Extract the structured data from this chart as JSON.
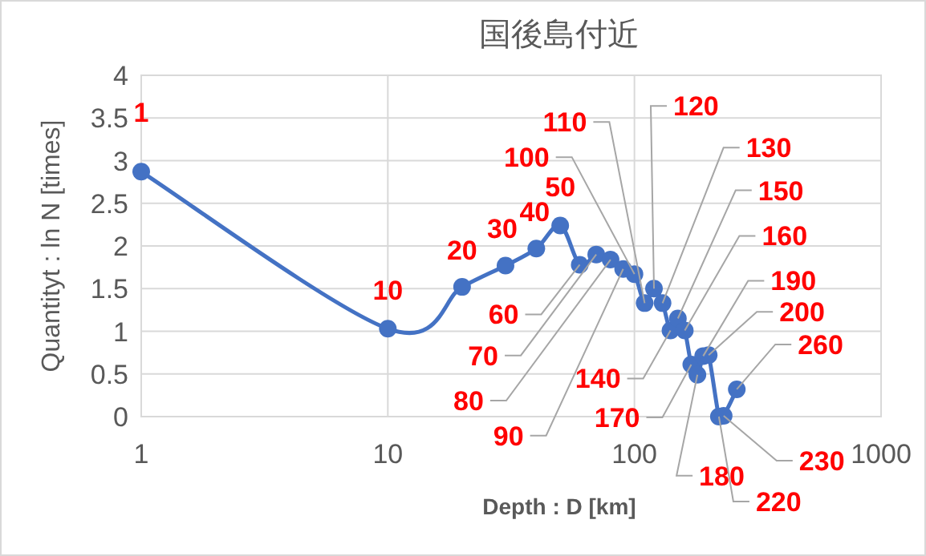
{
  "chart_data": {
    "type": "line",
    "title": "国後島付近",
    "xlabel": "Depth : D [km]",
    "ylabel": "Quantityt : ln N [times]",
    "x": [
      1,
      10,
      20,
      30,
      40,
      50,
      60,
      70,
      80,
      90,
      100,
      110,
      120,
      130,
      140,
      150,
      160,
      170,
      180,
      190,
      200,
      220,
      230,
      260
    ],
    "series": [
      {
        "color": "#4472c4",
        "values": [
          2.87,
          1.03,
          1.52,
          1.77,
          1.97,
          2.24,
          1.78,
          1.9,
          1.84,
          1.73,
          1.67,
          1.33,
          1.5,
          1.33,
          1.01,
          1.15,
          1.01,
          0.61,
          0.49,
          0.71,
          0.72,
          0,
          0.01,
          0.32
        ]
      }
    ],
    "annotations": [
      {
        "text": "1",
        "x": 1,
        "y": 2.87
      },
      {
        "text": "10",
        "x": 10,
        "y": 1.03
      },
      {
        "text": "20",
        "x": 20,
        "y": 1.52
      },
      {
        "text": "30",
        "x": 30,
        "y": 1.77
      },
      {
        "text": "40",
        "x": 40,
        "y": 1.97
      },
      {
        "text": "50",
        "x": 50,
        "y": 2.24
      },
      {
        "text": "60",
        "x": 60,
        "y": 1.78
      },
      {
        "text": "70",
        "x": 70,
        "y": 1.9
      },
      {
        "text": "80",
        "x": 80,
        "y": 1.84
      },
      {
        "text": "90",
        "x": 90,
        "y": 1.73
      },
      {
        "text": "100",
        "x": 100,
        "y": 1.67
      },
      {
        "text": "110",
        "x": 110,
        "y": 1.33
      },
      {
        "text": "120",
        "x": 120,
        "y": 1.5
      },
      {
        "text": "130",
        "x": 130,
        "y": 1.33
      },
      {
        "text": "140",
        "x": 140,
        "y": 1.01
      },
      {
        "text": "150",
        "x": 150,
        "y": 1.15
      },
      {
        "text": "160",
        "x": 160,
        "y": 1.01
      },
      {
        "text": "170",
        "x": 170,
        "y": 0.61
      },
      {
        "text": "180",
        "x": 180,
        "y": 0.49
      },
      {
        "text": "190",
        "x": 190,
        "y": 0.71
      },
      {
        "text": "200",
        "x": 200,
        "y": 0.72
      },
      {
        "text": "220",
        "x": 220,
        "y": 0
      },
      {
        "text": "230",
        "x": 230,
        "y": 0.01
      },
      {
        "text": "260",
        "x": 260,
        "y": 0.32
      }
    ],
    "log": "x",
    "xlim": [
      1,
      1000
    ],
    "xticks": [
      1,
      10,
      100,
      1000
    ],
    "ylim": [
      0,
      4
    ],
    "yticks": [
      0,
      0.5,
      1,
      1.5,
      2,
      2.5,
      3,
      3.5,
      4
    ],
    "grid": true,
    "marker": "circle",
    "line_style": "solid"
  }
}
